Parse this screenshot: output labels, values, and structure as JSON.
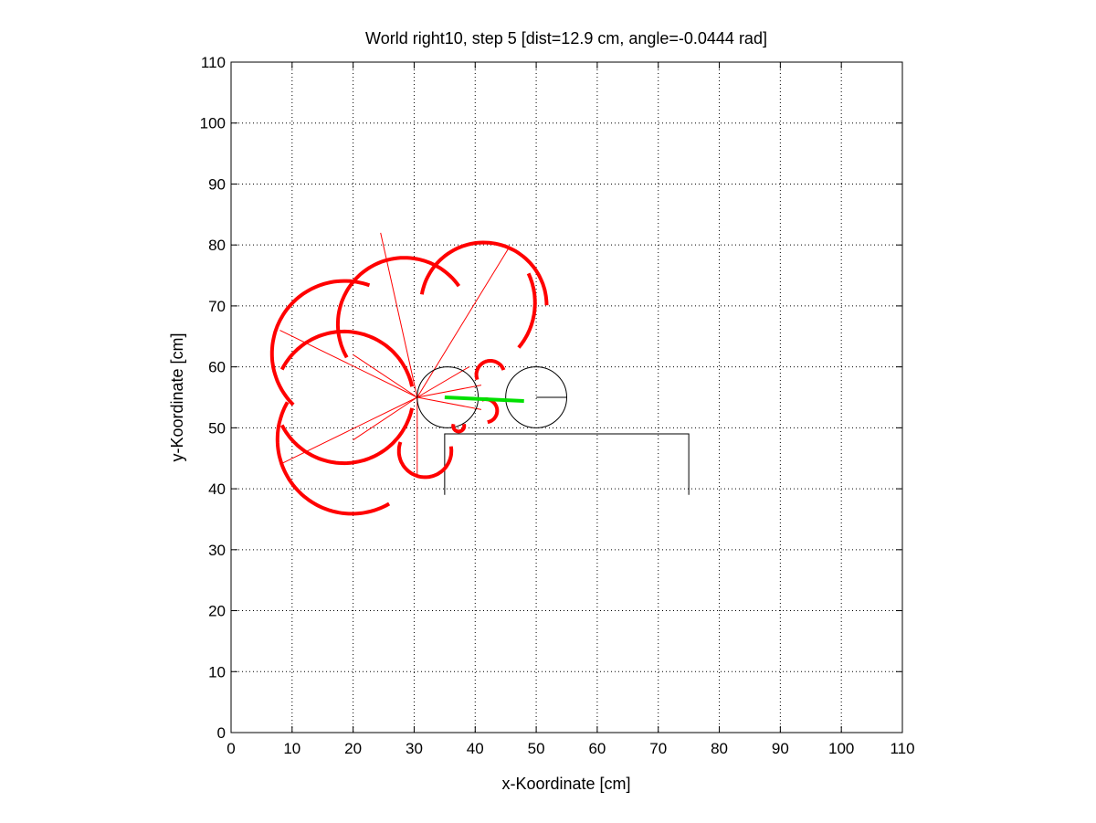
{
  "chart_data": {
    "type": "scatter",
    "title": "World right10, step 5 [dist=12.9 cm, angle=-0.0444 rad]",
    "xlabel": "x-Koordinate [cm]",
    "ylabel": "y-Koordinate [cm]",
    "xlim": [
      0,
      110
    ],
    "ylim": [
      0,
      110
    ],
    "xticks": [
      0,
      10,
      20,
      30,
      40,
      50,
      60,
      70,
      80,
      90,
      100,
      110
    ],
    "yticks": [
      0,
      10,
      20,
      30,
      40,
      50,
      60,
      70,
      80,
      90,
      100,
      110
    ],
    "grid": true,
    "colors": {
      "sensor_arc": "#ff0000",
      "sensor_ray": "#ff0000",
      "path": "#00e000",
      "robot": "#000000",
      "wall": "#000000"
    },
    "wall": [
      [
        35,
        39
      ],
      [
        35,
        49
      ],
      [
        75,
        49
      ],
      [
        75,
        39
      ]
    ],
    "robot_current": {
      "center": [
        35.5,
        55
      ],
      "radius": 5,
      "heading": -0.0444
    },
    "robot_previous": {
      "center": [
        50,
        55
      ],
      "radius": 5,
      "heading": 0
    },
    "path": [
      [
        35,
        55
      ],
      [
        48,
        54.4
      ]
    ],
    "sensor_origin": [
      30.5,
      55
    ],
    "sensor_rays": [
      [
        8,
        66
      ],
      [
        8,
        44
      ],
      [
        24.5,
        82
      ],
      [
        45.5,
        79.5
      ],
      [
        20,
        62
      ],
      [
        20,
        48
      ],
      [
        41,
        57
      ],
      [
        41,
        53
      ],
      [
        39,
        60
      ],
      [
        30.5,
        42
      ]
    ],
    "arcs": [
      {
        "c": [
          18.5,
          54.4
        ],
        "r": 11.4,
        "a1": 12,
        "a2": 153
      },
      {
        "c": [
          18.5,
          55.6
        ],
        "r": 11.4,
        "a1": 207,
        "a2": 348
      },
      {
        "c": [
          28.4,
          67
        ],
        "r": 10.9,
        "a1": 35,
        "a2": 210
      },
      {
        "c": [
          18.6,
          62.2
        ],
        "r": 11.9,
        "a1": 70,
        "a2": 225
      },
      {
        "c": [
          19.8,
          48.1
        ],
        "r": 12.2,
        "a1": 150,
        "a2": 300
      },
      {
        "c": [
          41.4,
          70.1
        ],
        "r": 10.3,
        "a1": 0,
        "a2": 170
      },
      {
        "c": [
          38.4,
          70.5
        ],
        "r": 11.4,
        "a1": 320,
        "a2": 385
      },
      {
        "c": [
          42.5,
          58.7
        ],
        "r": 2.3,
        "a1": 20,
        "a2": 200
      },
      {
        "c": [
          41.7,
          52.8
        ],
        "r": 1.9,
        "a1": -80,
        "a2": 110
      },
      {
        "c": [
          31.8,
          46.2
        ],
        "r": 4.3,
        "a1": 160,
        "a2": 370
      },
      {
        "c": [
          37.3,
          50.3
        ],
        "r": 0.9,
        "a1": 160,
        "a2": 380
      }
    ]
  }
}
